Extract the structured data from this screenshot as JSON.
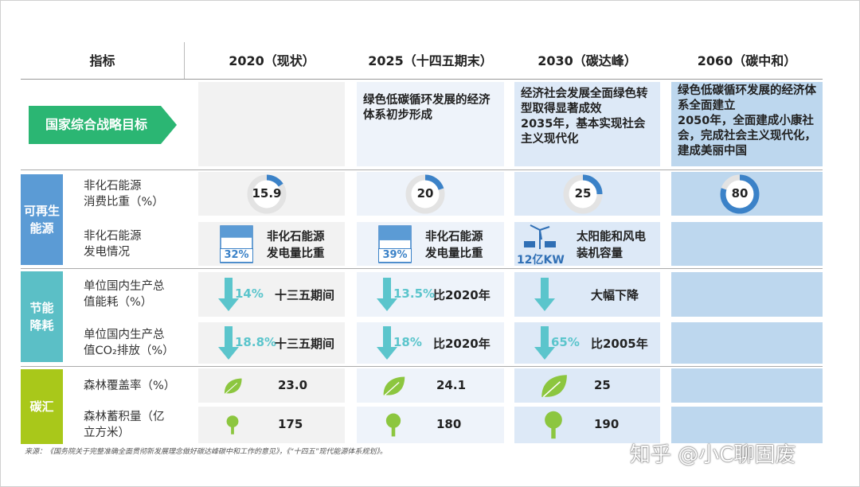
{
  "header": {
    "columns": [
      "指标",
      "2020（现状）",
      "2025（十四五期末）",
      "2030（碳达峰）",
      "2060（碳中和）"
    ]
  },
  "strategy": {
    "label": "国家综合战略目标",
    "goals": [
      [
        "绿色低碳循环发展的经济体系初步形成"
      ],
      [
        "经济社会发展全面绿色转型取得显著成效",
        "2035年，基本实现社会主义现代化"
      ],
      [
        "绿色低碳循环发展的经济体系全面建立",
        "2050年，全面建成小康社会，完成社会主义现代化，建成美丽中国"
      ]
    ]
  },
  "groups": [
    {
      "label": [
        "可再生",
        "能源"
      ],
      "rows": [
        {
          "label": [
            "非化石能源",
            "消费比重（%）"
          ],
          "cells": [
            15.9,
            20,
            25,
            80
          ]
        },
        {
          "label": [
            "非化石能源",
            "发电情况"
          ],
          "cells": [
            {
              "value": 32,
              "label": "32%",
              "text": [
                "非化石能源",
                "发电量比重"
              ]
            },
            {
              "value": 39,
              "label": "39%",
              "text": [
                "非化石能源",
                "发电量比重"
              ]
            },
            {
              "capacity": "12亿KW",
              "text": [
                "太阳能和风电",
                "装机容量"
              ]
            }
          ]
        }
      ]
    },
    {
      "label": [
        "节能",
        "降耗"
      ],
      "rows": [
        {
          "label": [
            "单位国内生产总",
            "值能耗（%）"
          ],
          "cells": [
            {
              "label": "14%",
              "text": "十三五期间"
            },
            {
              "label": "13.5%",
              "text": "比2020年"
            },
            {
              "text": "大幅下降"
            }
          ]
        },
        {
          "label": [
            "单位国内生产总",
            "值CO₂排放（%）"
          ],
          "cells": [
            {
              "label": "18.8%",
              "text": "十三五期间"
            },
            {
              "label": "18%",
              "text": "比2020年"
            },
            {
              "label": "65%",
              "text": "比2005年"
            }
          ]
        }
      ]
    },
    {
      "label": [
        "碳汇"
      ],
      "rows": [
        {
          "label": [
            "森林覆盖率（%）"
          ],
          "cells": [
            "23.0",
            "24.1",
            "25"
          ]
        },
        {
          "label": [
            "森林蓄积量（亿",
            "立方米）"
          ],
          "cells": [
            "175",
            "180",
            "190"
          ]
        }
      ]
    }
  ],
  "source": "来源：《国务院关于完整准确全面贯彻新发展理念做好碳达峰碳中和工作的意见》，《“十四五”现代能源体系规划》。",
  "watermark": "知乎 @小C聊固废"
}
